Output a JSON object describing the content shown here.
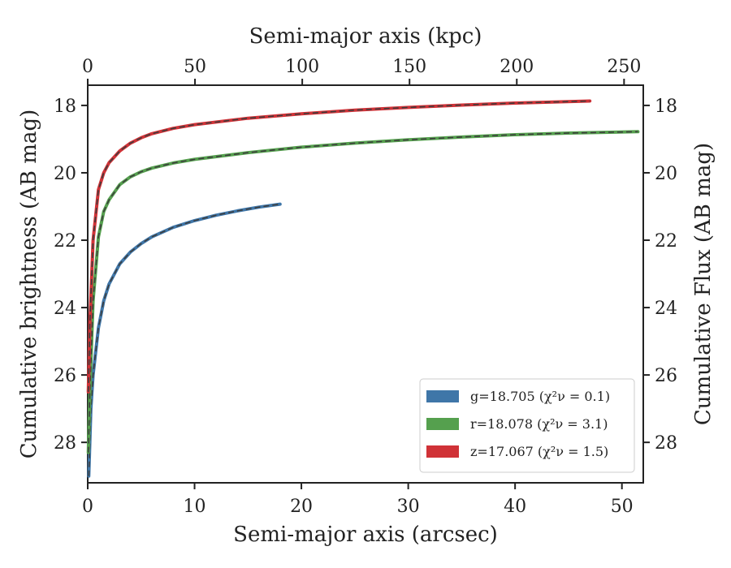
{
  "chart_data": {
    "type": "line",
    "xlabel": "Semi-major axis (arcsec)",
    "ylabel": "Cumulative brightness (AB mag)",
    "x2label": "Semi-major axis (kpc)",
    "y2label": "Cumulative Flux (AB mag)",
    "xlim": [
      0,
      52
    ],
    "ylim": [
      29.2,
      17.4
    ],
    "y_inverted": true,
    "x_ticks": [
      0,
      10,
      20,
      30,
      40,
      50
    ],
    "y_ticks": [
      18,
      20,
      22,
      24,
      26,
      28
    ],
    "x2_ticks": [
      0,
      50,
      100,
      150,
      200,
      250
    ],
    "x2_per_arcsec": 4.98,
    "grid": false,
    "legend": {
      "placement": "lower-right",
      "entries": [
        {
          "label": "g=18.705 (χ²ν = 0.1)",
          "color": "#3f76a8"
        },
        {
          "label": "r=18.078 (χ²ν = 3.1)",
          "color": "#55a04e"
        },
        {
          "label": "z=17.067 (χ²ν = 1.5)",
          "color": "#d03237"
        }
      ]
    },
    "series": [
      {
        "name": "g",
        "color": "#3f76a8",
        "x": [
          0.1,
          0.3,
          0.5,
          1,
          1.5,
          2,
          3,
          4,
          5,
          6,
          8,
          10,
          12,
          14,
          16,
          18
        ],
        "y": [
          29.0,
          27.0,
          26.0,
          24.6,
          23.8,
          23.3,
          22.7,
          22.35,
          22.1,
          21.9,
          21.62,
          21.42,
          21.26,
          21.13,
          21.02,
          20.93
        ]
      },
      {
        "name": "r",
        "color": "#55a04e",
        "x": [
          0.05,
          0.2,
          0.5,
          1,
          1.5,
          2,
          3,
          4,
          5,
          6,
          8,
          10,
          15,
          20,
          25,
          30,
          35,
          40,
          45,
          51.5
        ],
        "y": [
          28.3,
          26.5,
          23.8,
          21.9,
          21.15,
          20.8,
          20.35,
          20.12,
          19.97,
          19.86,
          19.71,
          19.6,
          19.4,
          19.24,
          19.12,
          19.02,
          18.94,
          18.87,
          18.82,
          18.78
        ]
      },
      {
        "name": "z",
        "color": "#d03237",
        "x": [
          0.05,
          0.2,
          0.5,
          1,
          1.5,
          2,
          3,
          4,
          5,
          6,
          8,
          10,
          15,
          20,
          25,
          30,
          35,
          40,
          47
        ],
        "y": [
          26.5,
          24.5,
          22.0,
          20.5,
          20.0,
          19.7,
          19.35,
          19.12,
          18.96,
          18.84,
          18.68,
          18.57,
          18.38,
          18.25,
          18.14,
          18.06,
          17.99,
          17.93,
          17.87
        ]
      }
    ]
  }
}
